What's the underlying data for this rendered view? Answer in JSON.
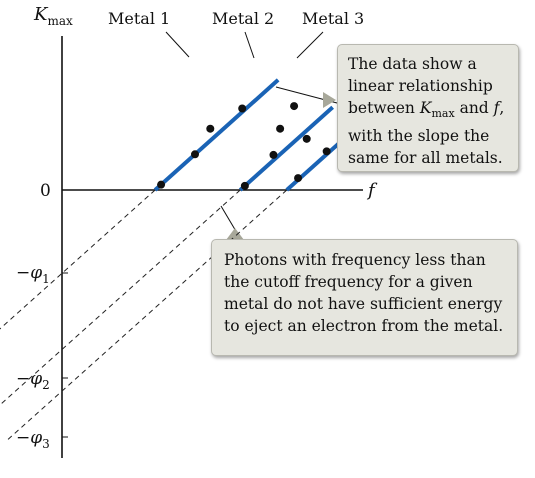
{
  "chart_data": {
    "type": "line",
    "title": "",
    "ylabel_main": "K",
    "ylabel_sub": "max",
    "xlabel": "f",
    "ylim": [
      -4.2,
      1.9
    ],
    "xlim": [
      0,
      4.6
    ],
    "y_ticks": [
      {
        "value": 0,
        "label": "0"
      },
      {
        "value": -1.4,
        "label": "−φ",
        "sub": "1"
      },
      {
        "value": -3.05,
        "label": "−φ",
        "sub": "2"
      },
      {
        "value": -3.9,
        "label": "−φ",
        "sub": "3"
      }
    ],
    "slope": 1.0,
    "line_color": "#1a63b5",
    "point_color": "#111111",
    "series": [
      {
        "name": "Metal 1",
        "cutoff": 1.4,
        "f_end": 3.25,
        "x": [
          1.49,
          2.0,
          2.23,
          2.71
        ],
        "y": [
          0.09,
          0.6,
          1.03,
          1.37
        ]
      },
      {
        "name": "Metal 2",
        "cutoff": 2.68,
        "f_end": 4.07,
        "x": [
          2.75,
          3.18,
          3.28,
          3.49,
          3.68
        ],
        "y": [
          0.07,
          0.59,
          1.03,
          1.41,
          0.86
        ]
      },
      {
        "name": "Metal 3",
        "cutoff": 3.38,
        "f_end": 4.56,
        "x": [
          3.55,
          3.98,
          4.27
        ],
        "y": [
          0.2,
          0.65,
          1.31
        ]
      }
    ]
  },
  "annotations": {
    "box1_text": "The data show a linear relationship between K",
    "box1_sub": "max",
    "box1_tail": " and f, with the slope the same for all metals.",
    "box1_lines": [
      "The data show a",
      "linear relationship",
      "between ",
      " and ",
      ",",
      "with the slope the",
      "same for all metals."
    ],
    "box2_lines": [
      "Photons with frequency less than",
      "the cutoff frequency for a given",
      "metal do not have sufficient energy",
      "to eject an electron from the metal."
    ],
    "box_fill": "#e6e6df",
    "box_border": "#b8b8b0"
  }
}
